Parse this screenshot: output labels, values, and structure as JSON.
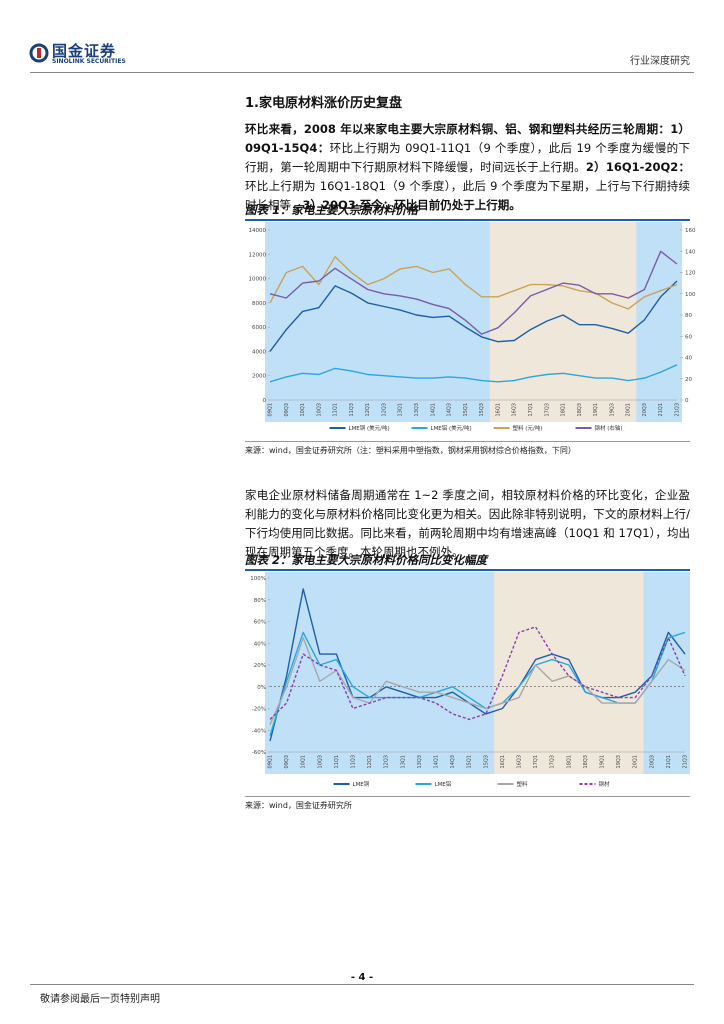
{
  "header": {
    "logo_cn": "国金证券",
    "logo_en": "SINOLINK SECURITIES",
    "report_type": "行业深度研究"
  },
  "section_title": "1.家电原材料涨价历史复盘",
  "paragraph1": [
    {
      "text": "环比来看，2008 年以来家电主要大宗原材料铜、铝、钢和塑料共经历三轮周期：1）09Q1-15Q4：",
      "bold": true
    },
    {
      "text": "环比上行期为 09Q1-11Q1（9 个季度），此后 19 个季度为缓慢的下行期，第一轮周期中下行期原材料下降缓慢，时间远长于上行期。",
      "bold": false
    },
    {
      "text": "2）16Q1-20Q2：",
      "bold": true
    },
    {
      "text": "环比上行期为 16Q1-18Q1（9 个季度），此后 9 个季度为下星期，上行与下行期持续时长相等，",
      "bold": false
    },
    {
      "text": "3）20Q3 至今：环比目前仍处于上行期。",
      "bold": true
    }
  ],
  "source1": "来源：wind，国金证券研究所（注：塑料采用中塑指数，钢材采用钢材综合价格指数，下同）",
  "paragraph2": "家电企业原材料储备周期通常在 1~2 季度之间，相较原材料价格的环比变化，企业盈利能力的变化与原材料价格同比变化更为相关。因此除非特别说明，下文的原材料上行/下行均使用同比数据。同比来看，前两轮周期中均有增速高峰（10Q1 和 17Q1），均出现在周期第五个季度。本轮周期也不例外。",
  "source2": "来源：wind，国金证券研究所",
  "page_number": "- 4 -",
  "footer": "敬请参阅最后一页特别声明",
  "chart_data": [
    {
      "type": "line",
      "title": "图表 1：家电主要大宗原材料价格",
      "categories": [
        "09Q1",
        "09Q3",
        "10Q1",
        "10Q3",
        "11Q1",
        "11Q3",
        "12Q1",
        "12Q3",
        "13Q1",
        "13Q3",
        "14Q1",
        "14Q3",
        "15Q1",
        "15Q3",
        "16Q1",
        "16Q3",
        "17Q1",
        "17Q3",
        "18Q1",
        "18Q3",
        "19Q1",
        "19Q3",
        "20Q1",
        "20Q3",
        "21Q1",
        "21Q3"
      ],
      "ylim": [
        0,
        14000
      ],
      "yticks": [
        0,
        2000,
        4000,
        6000,
        8000,
        10000,
        12000,
        14000
      ],
      "y2lim": [
        0,
        160
      ],
      "y2ticks": [
        0,
        20,
        40,
        60,
        80,
        100,
        120,
        140,
        160
      ],
      "series": [
        {
          "name": "LME铜 (美元/吨)",
          "color": "#1f5fa8",
          "values": [
            4000,
            5800,
            7300,
            7600,
            9400,
            8800,
            8000,
            7700,
            7400,
            7000,
            6800,
            6900,
            6000,
            5200,
            4800,
            4900,
            5800,
            6500,
            7000,
            6200,
            6200,
            5900,
            5500,
            6600,
            8500,
            9800
          ]
        },
        {
          "name": "LME铝 (美元/吨)",
          "color": "#2aa7e0",
          "values": [
            1500,
            1900,
            2200,
            2100,
            2600,
            2400,
            2100,
            2000,
            1900,
            1800,
            1800,
            1900,
            1800,
            1600,
            1500,
            1600,
            1900,
            2100,
            2200,
            2000,
            1800,
            1800,
            1600,
            1800,
            2300,
            2900
          ]
        },
        {
          "name": "塑料 (元/吨)",
          "color": "#c8a45a",
          "values": [
            8000,
            10500,
            11000,
            9500,
            11800,
            10500,
            9500,
            10000,
            10800,
            11000,
            10500,
            10800,
            9500,
            8500,
            8500,
            9000,
            9500,
            9500,
            9400,
            9000,
            8800,
            8000,
            7500,
            8500,
            9000,
            9500
          ]
        },
        {
          "name": "钢材 (右轴)",
          "color": "#7a5ca8",
          "axis": "y2",
          "values": [
            100,
            96,
            110,
            112,
            124,
            114,
            104,
            100,
            98,
            95,
            90,
            86,
            75,
            62,
            68,
            82,
            98,
            104,
            110,
            108,
            100,
            100,
            96,
            104,
            140,
            128
          ]
        }
      ]
    },
    {
      "type": "line",
      "title": "图表 2：家电主要大宗原材料价格同比变化幅度",
      "categories": [
        "09Q1",
        "09Q3",
        "10Q1",
        "10Q3",
        "11Q1",
        "11Q3",
        "12Q1",
        "12Q3",
        "13Q1",
        "13Q3",
        "14Q1",
        "14Q3",
        "15Q1",
        "15Q3",
        "16Q1",
        "16Q3",
        "17Q1",
        "17Q3",
        "18Q1",
        "18Q3",
        "19Q1",
        "19Q3",
        "20Q1",
        "20Q3",
        "21Q1",
        "21Q3"
      ],
      "ylim": [
        -60,
        100
      ],
      "yticks": [
        {
          "value": -60,
          "label": "-60%"
        },
        {
          "value": -40,
          "label": "-40%"
        },
        {
          "value": -20,
          "label": "-20%"
        },
        {
          "value": 0,
          "label": "0%"
        },
        {
          "value": 20,
          "label": "20%"
        },
        {
          "value": 40,
          "label": "40%"
        },
        {
          "value": 60,
          "label": "60%"
        },
        {
          "value": 80,
          "label": "80%"
        },
        {
          "value": 100,
          "label": "100%"
        }
      ],
      "series": [
        {
          "name": "LME铜",
          "color": "#1f5fa8",
          "values": [
            -50,
            10,
            90,
            30,
            30,
            -10,
            -10,
            0,
            -5,
            -10,
            -10,
            -5,
            -15,
            -25,
            -20,
            0,
            25,
            30,
            25,
            -5,
            -10,
            -10,
            -5,
            10,
            50,
            30
          ]
        },
        {
          "name": "LME铝",
          "color": "#2aa7e0",
          "values": [
            -45,
            5,
            50,
            20,
            25,
            0,
            -10,
            -10,
            -10,
            -10,
            -5,
            0,
            -10,
            -20,
            -15,
            0,
            20,
            25,
            20,
            -5,
            -10,
            -15,
            -15,
            5,
            45,
            50
          ]
        },
        {
          "name": "塑料",
          "color": "#a8a8a8",
          "values": [
            -35,
            0,
            45,
            5,
            15,
            -10,
            -15,
            5,
            0,
            -5,
            -5,
            -10,
            -15,
            -20,
            -15,
            -10,
            20,
            5,
            10,
            0,
            -15,
            -15,
            -15,
            5,
            25,
            15
          ]
        },
        {
          "name": "钢材",
          "color": "#8a3fb0",
          "dash": true,
          "values": [
            -30,
            -15,
            30,
            20,
            15,
            -20,
            -15,
            -10,
            -10,
            -10,
            -15,
            -25,
            -30,
            -25,
            10,
            50,
            55,
            30,
            10,
            0,
            -5,
            -10,
            -10,
            10,
            45,
            10
          ]
        }
      ]
    }
  ]
}
